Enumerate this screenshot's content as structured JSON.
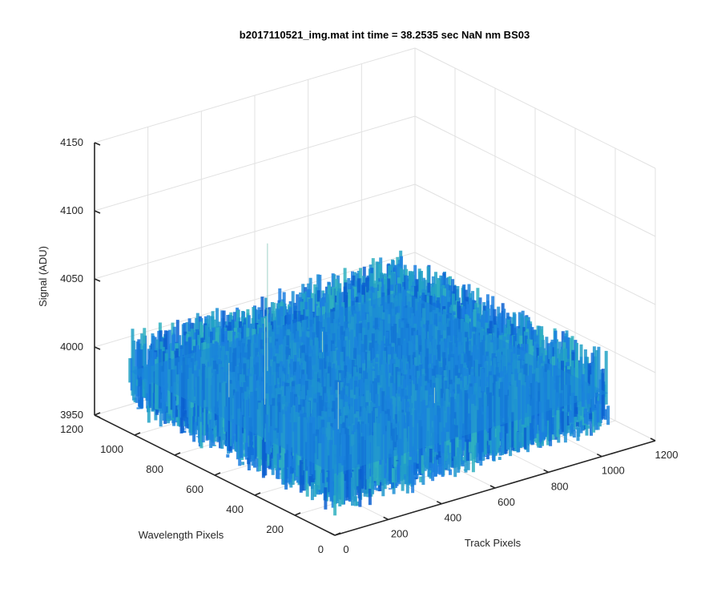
{
  "chart_data": {
    "type": "surface",
    "title": "b2017110521_img.mat int time = 38.2535 sec  NaN nm BS03",
    "xlabel": "Track Pixels",
    "ylabel": "Wavelength Pixels",
    "zlabel": "Signal (ADU)",
    "xlim": [
      0,
      1200
    ],
    "ylim": [
      0,
      1200
    ],
    "zlim": [
      3950,
      4150
    ],
    "x_ticks": [
      "0",
      "200",
      "400",
      "600",
      "800",
      "1000",
      "1200"
    ],
    "y_ticks": [
      "0",
      "200",
      "400",
      "600",
      "800",
      "1000",
      "1200"
    ],
    "z_ticks": [
      "3950",
      "4000",
      "4050",
      "4100",
      "4150"
    ],
    "surface": {
      "x_range": [
        1,
        1024
      ],
      "y_range": [
        1,
        1024
      ],
      "mean_level": 3995,
      "noise_min": 3968,
      "noise_max": 4030,
      "outlier_max": 4100
    },
    "grid": true,
    "colormap": "parula"
  }
}
